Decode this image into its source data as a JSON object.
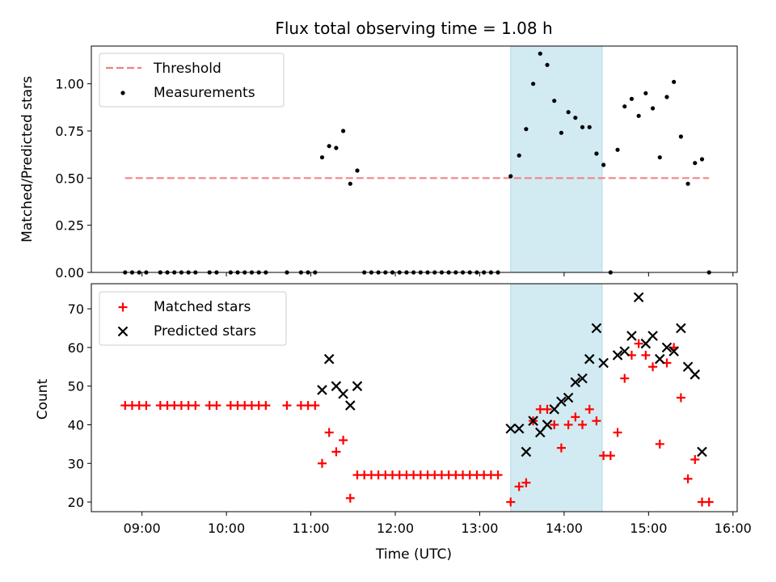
{
  "chart_data": [
    {
      "type": "scatter",
      "panel": "top",
      "title": "Flux total observing time = 1.08 h",
      "ylabel": "Matched/Predicted stars",
      "ylim": [
        0,
        1.2
      ],
      "yticks": [
        0,
        0.25,
        0.5,
        0.75,
        1.0
      ],
      "ytick_labels": [
        "0.00",
        "0.25",
        "0.50",
        "0.75",
        "1.00"
      ],
      "legend_position": "top-left",
      "shaded_span": {
        "x_start": "13:22",
        "x_end": "14:27",
        "color": "#add8e6"
      },
      "threshold": {
        "name": "Threshold",
        "y": 0.5,
        "x_start": "08:48",
        "x_end": "15:43",
        "color": "#f08080"
      },
      "series": [
        {
          "name": "Measurements",
          "color": "#000000",
          "x": [
            "08:48",
            "08:53",
            "08:58",
            "09:03",
            "09:13",
            "09:18",
            "09:23",
            "09:28",
            "09:33",
            "09:38",
            "09:48",
            "09:53",
            "10:03",
            "10:08",
            "10:13",
            "10:18",
            "10:23",
            "10:28",
            "10:43",
            "10:53",
            "10:58",
            "11:03",
            "11:08",
            "11:13",
            "11:18",
            "11:23",
            "11:28",
            "11:33",
            "11:38",
            "11:43",
            "11:48",
            "11:53",
            "11:58",
            "12:03",
            "12:08",
            "12:13",
            "12:18",
            "12:23",
            "12:28",
            "12:33",
            "12:38",
            "12:43",
            "12:48",
            "12:53",
            "12:58",
            "13:03",
            "13:08",
            "13:13",
            "13:22",
            "13:28",
            "13:33",
            "13:38",
            "13:43",
            "13:48",
            "13:53",
            "13:58",
            "14:03",
            "14:08",
            "14:13",
            "14:18",
            "14:23",
            "14:28",
            "14:33",
            "14:38",
            "14:43",
            "14:48",
            "14:53",
            "14:58",
            "15:03",
            "15:08",
            "15:13",
            "15:18",
            "15:23",
            "15:28",
            "15:33",
            "15:38",
            "15:43"
          ],
          "y": [
            0,
            0,
            0,
            0,
            0,
            0,
            0,
            0,
            0,
            0,
            0,
            0,
            0,
            0,
            0,
            0,
            0,
            0,
            0,
            0,
            0,
            0,
            0.61,
            0.67,
            0.66,
            0.75,
            0.47,
            0.54,
            0,
            0,
            0,
            0,
            0,
            0,
            0,
            0,
            0,
            0,
            0,
            0,
            0,
            0,
            0,
            0,
            0,
            0,
            0,
            0,
            0.51,
            0.62,
            0.76,
            1.0,
            1.16,
            1.1,
            0.91,
            0.74,
            0.85,
            0.82,
            0.77,
            0.77,
            0.63,
            0.57,
            0,
            0.65,
            0.88,
            0.92,
            0.83,
            0.95,
            0.87,
            0.61,
            0.93,
            1.01,
            0.72,
            0.47,
            0.58,
            0.6,
            0
          ]
        }
      ]
    },
    {
      "type": "scatter",
      "panel": "bottom",
      "xlabel": "Time (UTC)",
      "ylabel": "Count",
      "ylim": [
        17.5,
        76.5
      ],
      "yticks": [
        20,
        30,
        40,
        50,
        60,
        70
      ],
      "xlim": [
        "08:24",
        "16:03"
      ],
      "xticks": [
        "09:00",
        "10:00",
        "11:00",
        "12:00",
        "13:00",
        "14:00",
        "15:00",
        "16:00"
      ],
      "legend_position": "top-left",
      "shaded_span": {
        "x_start": "13:22",
        "x_end": "14:27",
        "color": "#add8e6"
      },
      "series": [
        {
          "name": "Matched stars",
          "marker": "+",
          "color": "#ff0000",
          "x": [
            "08:48",
            "08:53",
            "08:58",
            "09:03",
            "09:13",
            "09:18",
            "09:23",
            "09:28",
            "09:33",
            "09:38",
            "09:48",
            "09:53",
            "10:03",
            "10:08",
            "10:13",
            "10:18",
            "10:23",
            "10:28",
            "10:43",
            "10:53",
            "10:58",
            "11:03",
            "11:08",
            "11:13",
            "11:18",
            "11:23",
            "11:28",
            "11:33",
            "11:38",
            "11:43",
            "11:48",
            "11:53",
            "11:58",
            "12:03",
            "12:08",
            "12:13",
            "12:18",
            "12:23",
            "12:28",
            "12:33",
            "12:38",
            "12:43",
            "12:48",
            "12:53",
            "12:58",
            "13:03",
            "13:08",
            "13:13",
            "13:22",
            "13:28",
            "13:33",
            "13:38",
            "13:43",
            "13:48",
            "13:53",
            "13:58",
            "14:03",
            "14:08",
            "14:13",
            "14:18",
            "14:23",
            "14:28",
            "14:33",
            "14:38",
            "14:43",
            "14:48",
            "14:53",
            "14:58",
            "15:03",
            "15:08",
            "15:13",
            "15:18",
            "15:23",
            "15:28",
            "15:33",
            "15:38",
            "15:43"
          ],
          "y": [
            45,
            45,
            45,
            45,
            45,
            45,
            45,
            45,
            45,
            45,
            45,
            45,
            45,
            45,
            45,
            45,
            45,
            45,
            45,
            45,
            45,
            45,
            30,
            38,
            33,
            36,
            21,
            27,
            27,
            27,
            27,
            27,
            27,
            27,
            27,
            27,
            27,
            27,
            27,
            27,
            27,
            27,
            27,
            27,
            27,
            27,
            27,
            27,
            20,
            24,
            25,
            41,
            44,
            44,
            40,
            34,
            40,
            42,
            40,
            44,
            41,
            32,
            32,
            38,
            52,
            58,
            61,
            58,
            55,
            35,
            56,
            60,
            47,
            26,
            31,
            20,
            20
          ]
        },
        {
          "name": "Predicted stars",
          "marker": "x",
          "color": "#000000",
          "x": [
            "11:08",
            "11:13",
            "11:18",
            "11:23",
            "11:28",
            "11:33",
            "13:22",
            "13:28",
            "13:33",
            "13:38",
            "13:43",
            "13:48",
            "13:53",
            "13:58",
            "14:03",
            "14:08",
            "14:13",
            "14:18",
            "14:23",
            "14:28",
            "14:38",
            "14:43",
            "14:48",
            "14:53",
            "14:58",
            "15:03",
            "15:08",
            "15:13",
            "15:18",
            "15:23",
            "15:28",
            "15:33",
            "15:38"
          ],
          "y": [
            49,
            57,
            50,
            48,
            45,
            50,
            39,
            39,
            33,
            41,
            38,
            40,
            44,
            46,
            47,
            51,
            52,
            57,
            65,
            56,
            58,
            59,
            63,
            73,
            61,
            63,
            57,
            60,
            59,
            65,
            55,
            53,
            33
          ]
        }
      ]
    }
  ]
}
